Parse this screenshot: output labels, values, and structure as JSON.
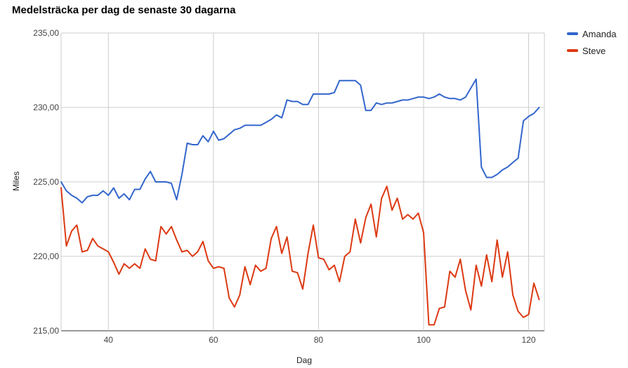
{
  "chart_data": {
    "type": "line",
    "title": "Medelsträcka per dag de senaste 30 dagarna",
    "xlabel": "Dag",
    "ylabel": "Miles",
    "xlim": [
      31,
      123
    ],
    "ylim": [
      215,
      235
    ],
    "x_ticks": [
      40,
      60,
      80,
      100,
      120
    ],
    "x_tick_labels": [
      "40",
      "60",
      "80",
      "100",
      "120"
    ],
    "y_ticks": [
      215,
      220,
      225,
      230,
      235
    ],
    "y_tick_labels": [
      "215,00",
      "220,00",
      "225,00",
      "230,00",
      "235,00"
    ],
    "grid": true,
    "legend_position": "right",
    "x": [
      31,
      32,
      33,
      34,
      35,
      36,
      37,
      38,
      39,
      40,
      41,
      42,
      43,
      44,
      45,
      46,
      47,
      48,
      49,
      50,
      51,
      52,
      53,
      54,
      55,
      56,
      57,
      58,
      59,
      60,
      61,
      62,
      63,
      64,
      65,
      66,
      67,
      68,
      69,
      70,
      71,
      72,
      73,
      74,
      75,
      76,
      77,
      78,
      79,
      80,
      81,
      82,
      83,
      84,
      85,
      86,
      87,
      88,
      89,
      90,
      91,
      92,
      93,
      94,
      95,
      96,
      97,
      98,
      99,
      100,
      101,
      102,
      103,
      104,
      105,
      106,
      107,
      108,
      109,
      110,
      111,
      112,
      113,
      114,
      115,
      116,
      117,
      118,
      119,
      120,
      121,
      122
    ],
    "series": [
      {
        "name": "Amanda",
        "color": "#3366cc",
        "values": [
          225.0,
          224.4,
          224.1,
          223.9,
          223.6,
          224.0,
          224.1,
          224.1,
          224.4,
          224.1,
          224.6,
          223.9,
          224.2,
          223.8,
          224.5,
          224.5,
          225.2,
          225.7,
          225.0,
          225.0,
          225.0,
          224.9,
          223.8,
          225.5,
          227.6,
          227.5,
          227.5,
          228.1,
          227.7,
          228.4,
          227.8,
          227.9,
          228.2,
          228.5,
          228.6,
          228.8,
          228.8,
          228.8,
          228.8,
          229.0,
          229.2,
          229.5,
          229.3,
          230.5,
          230.4,
          230.4,
          230.2,
          230.2,
          230.9,
          230.9,
          230.9,
          230.9,
          231.0,
          231.8,
          231.8,
          231.8,
          231.8,
          231.5,
          229.8,
          229.8,
          230.3,
          230.2,
          230.3,
          230.3,
          230.4,
          230.5,
          230.5,
          230.6,
          230.7,
          230.7,
          230.6,
          230.7,
          230.9,
          230.7,
          230.6,
          230.6,
          230.5,
          230.7,
          231.3,
          231.9,
          226.0,
          225.3,
          225.3,
          225.5,
          225.8,
          226.0,
          226.3,
          226.6,
          229.1,
          229.4,
          229.6,
          230.0
        ]
      },
      {
        "name": "Steve",
        "color": "#dc3912",
        "values": [
          224.6,
          220.7,
          221.7,
          222.1,
          220.3,
          220.4,
          221.2,
          220.7,
          220.5,
          220.3,
          219.6,
          218.8,
          219.5,
          219.2,
          219.5,
          219.2,
          220.5,
          219.8,
          219.7,
          222.0,
          221.5,
          222.0,
          221.1,
          220.3,
          220.4,
          220.0,
          220.3,
          221.0,
          219.7,
          219.2,
          219.3,
          219.2,
          217.2,
          216.6,
          217.4,
          219.3,
          218.1,
          219.4,
          219.0,
          219.2,
          221.2,
          222.0,
          220.2,
          221.3,
          219.0,
          218.9,
          217.8,
          220.2,
          222.1,
          219.9,
          219.8,
          219.1,
          219.4,
          218.3,
          220.0,
          220.3,
          222.5,
          220.9,
          222.6,
          223.5,
          221.3,
          223.9,
          224.7,
          223.1,
          223.9,
          222.5,
          222.8,
          222.5,
          222.9,
          221.6,
          215.4,
          215.4,
          216.5,
          216.6,
          219.0,
          218.6,
          219.8,
          217.7,
          216.4,
          219.4,
          218.0,
          220.1,
          218.3,
          221.1,
          218.6,
          220.3,
          217.4,
          216.3,
          215.9,
          216.1,
          218.2,
          217.1
        ]
      }
    ]
  }
}
